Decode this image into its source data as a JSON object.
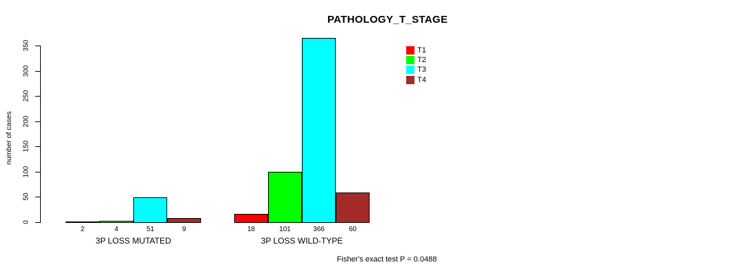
{
  "title": "PATHOLOGY_T_STAGE",
  "chart_data": {
    "type": "bar",
    "title": "PATHOLOGY_T_STAGE",
    "ylabel": "number of cases",
    "ylim": [
      0,
      350
    ],
    "yticks": [
      0,
      50,
      100,
      150,
      200,
      250,
      300,
      350
    ],
    "grid": false,
    "legend_position": "top-right",
    "groups": [
      "3P LOSS MUTATED",
      "3P LOSS WILD-TYPE"
    ],
    "series": [
      {
        "name": "T1",
        "color": "#FF0000",
        "values": [
          2,
          18
        ]
      },
      {
        "name": "T2",
        "color": "#00FF00",
        "values": [
          4,
          101
        ]
      },
      {
        "name": "T3",
        "color": "#00FFFF",
        "values": [
          51,
          366
        ]
      },
      {
        "name": "T4",
        "color": "#A52A2A",
        "values": [
          9,
          60
        ]
      }
    ],
    "footer": "Fisher's exact test P = 0.0488"
  }
}
